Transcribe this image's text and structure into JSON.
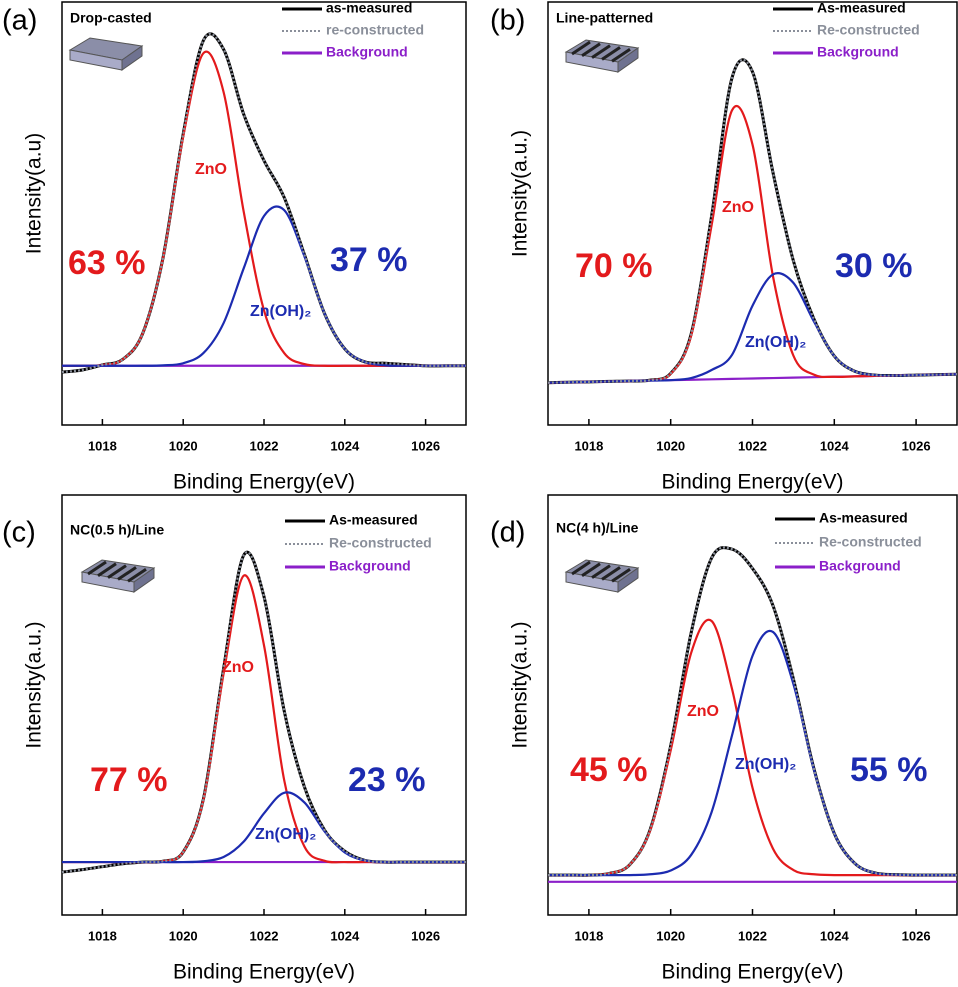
{
  "chart_data": [
    {
      "type": "line",
      "panel_label": "(a)",
      "title": "Drop-casted",
      "x_label": "Binding Energy(eV)",
      "y_label": "Intensity(a.u)",
      "xlim": [
        1017,
        1027
      ],
      "xticks": [
        1018,
        1020,
        1022,
        1024,
        1026
      ],
      "ylim": [
        0,
        100
      ],
      "x": [
        1017,
        1017.5,
        1018,
        1018.5,
        1019,
        1019.5,
        1020,
        1020.5,
        1021,
        1021.5,
        1022,
        1022.5,
        1023,
        1023.5,
        1024,
        1024.5,
        1025,
        1025.5,
        1026,
        1026.5,
        1027
      ],
      "series": [
        {
          "name": "as-measured",
          "color": "#000000",
          "dash": false,
          "in_legend": true,
          "values": [
            12.5,
            13,
            14.2,
            15.5,
            21.7,
            39.5,
            68.8,
            90.9,
            88.8,
            73.4,
            62.5,
            53.8,
            40.3,
            26.3,
            18.0,
            14.9,
            14.6,
            14.3,
            14,
            14,
            14
          ]
        },
        {
          "name": "re-constructed",
          "color": "#8a8f9a",
          "dash": true,
          "in_legend": true,
          "values": [
            12.5,
            13,
            14.2,
            15.5,
            21.7,
            39.5,
            68.8,
            90.9,
            88.8,
            73.4,
            62.5,
            53.8,
            40.3,
            26.3,
            18.0,
            14.9,
            14.6,
            14.3,
            14,
            14,
            14
          ]
        },
        {
          "name": "Background",
          "color": "#8b1fc9",
          "dash": false,
          "in_legend": true,
          "values": [
            14,
            14,
            14,
            14,
            14,
            14,
            14,
            14,
            14,
            14,
            14,
            14,
            14,
            14,
            14,
            14,
            14,
            14,
            14,
            14,
            14
          ]
        },
        {
          "name": "ZnO",
          "color": "#e31a1c",
          "dash": false,
          "in_legend": false,
          "values": [
            14,
            14,
            14.2,
            15.5,
            21.7,
            39.4,
            68.2,
            87.9,
            78.7,
            50.3,
            27.1,
            17.0,
            14.4,
            14,
            14,
            14,
            14,
            14,
            14,
            14,
            14
          ]
        },
        {
          "name": "Zn(OH)₂",
          "color": "#1c2bb0",
          "dash": false,
          "in_legend": false,
          "values": [
            14,
            14,
            14,
            14,
            14,
            14.1,
            14.6,
            17.0,
            24.1,
            37.1,
            49.4,
            50.8,
            39.9,
            26.3,
            18.0,
            14.9,
            14.1,
            14,
            14,
            14,
            14
          ]
        }
      ],
      "annotations": [
        {
          "text": "63 %",
          "color": "#e31a1c"
        },
        {
          "text": "37 %",
          "color": "#1c2bb0"
        }
      ]
    },
    {
      "type": "line",
      "panel_label": "(b)",
      "title": "Line-patterned",
      "x_label": "Binding Energy(eV)",
      "y_label": "Intensity(a.u.)",
      "xlim": [
        1017,
        1027
      ],
      "xticks": [
        1018,
        1020,
        1022,
        1024,
        1026
      ],
      "ylim": [
        0,
        100
      ],
      "x": [
        1017,
        1017.5,
        1018,
        1018.5,
        1019,
        1019.5,
        1020,
        1020.5,
        1021,
        1021.5,
        1022,
        1022.5,
        1023,
        1023.5,
        1024,
        1024.5,
        1025,
        1025.5,
        1026,
        1026.5,
        1027
      ],
      "series": [
        {
          "name": "As-measured",
          "color": "#000000",
          "dash": false,
          "in_legend": true,
          "values": [
            10,
            10.1,
            10.2,
            10.3,
            10.4,
            10.6,
            12.2,
            21.5,
            49.4,
            82.1,
            83.5,
            59.7,
            38.8,
            25.1,
            16.3,
            12.7,
            11.8,
            11.7,
            11.8,
            11.9,
            12
          ]
        },
        {
          "name": "Re-constructed",
          "color": "#8a8f9a",
          "dash": true,
          "in_legend": true,
          "values": [
            10,
            10.1,
            10.2,
            10.3,
            10.4,
            10.6,
            12.2,
            21.5,
            49.4,
            82.1,
            83.5,
            59.7,
            38.8,
            25.1,
            16.3,
            12.7,
            11.8,
            11.7,
            11.8,
            11.9,
            12
          ]
        },
        {
          "name": "Background",
          "color": "#8b1fc9",
          "dash": false,
          "in_legend": true,
          "values": [
            10,
            10.1,
            10.2,
            10.3,
            10.4,
            10.5,
            10.6,
            10.7,
            10.8,
            10.9,
            11,
            11.1,
            11.2,
            11.3,
            11.4,
            11.5,
            11.6,
            11.7,
            11.8,
            11.9,
            12
          ]
        },
        {
          "name": "ZnO",
          "color": "#e31a1c",
          "dash": false,
          "in_legend": false,
          "values": [
            10,
            10.1,
            10.2,
            10.3,
            10.4,
            10.6,
            12.1,
            21.1,
            47.2,
            74.4,
            66.3,
            35.2,
            16.4,
            11.9,
            11.4,
            11.5,
            11.6,
            11.7,
            11.8,
            11.9,
            12
          ]
        },
        {
          "name": "Zn(OH)₂",
          "color": "#1c2bb0",
          "dash": false,
          "in_legend": false,
          "values": [
            10,
            10.1,
            10.2,
            10.3,
            10.4,
            10.5,
            10.6,
            11.1,
            13.0,
            16.6,
            28.2,
            35.6,
            33.6,
            24.5,
            16.3,
            12.7,
            11.8,
            11.7,
            11.8,
            11.9,
            12
          ]
        }
      ],
      "annotations": [
        {
          "text": "70 %",
          "color": "#e31a1c"
        },
        {
          "text": "30 %",
          "color": "#1c2bb0"
        }
      ]
    },
    {
      "type": "line",
      "panel_label": "(c)",
      "title": "NC(0.5 h)/Line",
      "x_label": "Binding Energy(eV)",
      "y_label": "Intensity(a.u.)",
      "xlim": [
        1017,
        1027
      ],
      "xticks": [
        1018,
        1020,
        1022,
        1024,
        1026
      ],
      "ylim": [
        0,
        100
      ],
      "x": [
        1017,
        1017.5,
        1018,
        1018.5,
        1019,
        1019.5,
        1020,
        1020.5,
        1021,
        1021.5,
        1022,
        1022.5,
        1023,
        1023.5,
        1024,
        1024.5,
        1025,
        1025.5,
        1026,
        1026.5,
        1027
      ],
      "series": [
        {
          "name": "As-measured",
          "color": "#000000",
          "dash": false,
          "in_legend": true,
          "values": [
            10.2,
            10.8,
            11.5,
            12.2,
            12.6,
            12.8,
            15.0,
            27.6,
            58.7,
            85.7,
            75.8,
            48.6,
            30.5,
            20.2,
            15.2,
            13.0,
            12.6,
            12.6,
            12.6,
            12.6,
            12.6
          ]
        },
        {
          "name": "Re-constructed",
          "color": "#8a8f9a",
          "dash": true,
          "in_legend": true,
          "values": [
            10.2,
            10.8,
            11.5,
            12.2,
            12.6,
            12.8,
            15.0,
            27.6,
            58.7,
            85.7,
            75.8,
            48.6,
            30.5,
            20.2,
            15.2,
            13.0,
            12.6,
            12.6,
            12.6,
            12.6,
            12.6
          ]
        },
        {
          "name": "Background",
          "color": "#8b1fc9",
          "dash": false,
          "in_legend": true,
          "values": [
            12.6,
            12.6,
            12.6,
            12.6,
            12.6,
            12.6,
            12.6,
            12.6,
            12.6,
            12.6,
            12.6,
            12.6,
            12.6,
            12.6,
            12.6,
            12.6,
            12.6,
            12.6,
            12.6,
            12.6,
            12.6
          ]
        },
        {
          "name": "ZnO",
          "color": "#e31a1c",
          "dash": false,
          "in_legend": false,
          "values": [
            12.6,
            12.6,
            12.6,
            12.6,
            12.6,
            12.8,
            15.0,
            27.4,
            57.5,
            80.8,
            64.2,
            32.1,
            16.3,
            12.9,
            12.6,
            12.6,
            12.6,
            12.6,
            12.6,
            12.6,
            12.6
          ]
        },
        {
          "name": "Zn(OH)₂",
          "color": "#1c2bb0",
          "dash": false,
          "in_legend": false,
          "values": [
            12.6,
            12.6,
            12.6,
            12.6,
            12.6,
            12.6,
            12.6,
            12.8,
            13.8,
            17.5,
            24.2,
            29.1,
            26.8,
            19.9,
            14.9,
            13.0,
            12.6,
            12.6,
            12.6,
            12.6,
            12.6
          ]
        }
      ],
      "annotations": [
        {
          "text": "77 %",
          "color": "#e31a1c"
        },
        {
          "text": "23 %",
          "color": "#1c2bb0"
        }
      ]
    },
    {
      "type": "line",
      "panel_label": "(d)",
      "title": "NC(4 h)/Line",
      "x_label": "Binding Energy(eV)",
      "y_label": "Intensity(a.u.)",
      "xlim": [
        1017,
        1027
      ],
      "xticks": [
        1018,
        1020,
        1022,
        1024,
        1026
      ],
      "ylim": [
        0,
        100
      ],
      "x": [
        1017,
        1017.5,
        1018,
        1018.5,
        1019,
        1019.5,
        1020,
        1020.5,
        1021,
        1021.5,
        1022,
        1022.5,
        1023,
        1023.5,
        1024,
        1024.5,
        1025,
        1025.5,
        1026,
        1026.5,
        1027
      ],
      "series": [
        {
          "name": "As-measured",
          "color": "#000000",
          "dash": false,
          "in_legend": true,
          "values": [
            9.5,
            9.5,
            9.5,
            9.9,
            12.0,
            20.4,
            40.3,
            67.2,
            85.0,
            87.1,
            82.5,
            73.7,
            56.2,
            34.9,
            19.4,
            12.3,
            10.0,
            9.6,
            9.5,
            9.5,
            9.5
          ]
        },
        {
          "name": "Re-constructed",
          "color": "#8a8f9a",
          "dash": true,
          "in_legend": true,
          "values": [
            9.5,
            9.5,
            9.5,
            9.9,
            12.0,
            20.4,
            40.3,
            67.2,
            85.0,
            87.1,
            82.5,
            73.7,
            56.2,
            34.9,
            19.4,
            12.3,
            10.0,
            9.6,
            9.5,
            9.5,
            9.5
          ]
        },
        {
          "name": "Background",
          "color": "#8b1fc9",
          "dash": false,
          "in_legend": true,
          "values": [
            7.9,
            7.9,
            7.9,
            7.9,
            7.9,
            7.9,
            7.9,
            7.9,
            7.9,
            7.9,
            7.9,
            7.9,
            7.9,
            7.9,
            7.9,
            7.9,
            7.9,
            7.9,
            7.9,
            7.9,
            7.9
          ]
        },
        {
          "name": "ZnO",
          "color": "#e31a1c",
          "dash": false,
          "in_legend": false,
          "values": [
            9.5,
            9.5,
            9.5,
            9.9,
            12.0,
            20.2,
            39.2,
            62.4,
            70.0,
            53.8,
            30.3,
            15.8,
            10.7,
            9.7,
            9.5,
            9.5,
            9.5,
            9.5,
            9.5,
            9.5,
            9.5
          ]
        },
        {
          "name": "Zn(OH)₂",
          "color": "#1c2bb0",
          "dash": false,
          "in_legend": false,
          "values": [
            9.5,
            9.5,
            9.5,
            9.5,
            9.5,
            9.7,
            10.6,
            14.3,
            24.5,
            42.8,
            61.7,
            67.4,
            55.0,
            34.7,
            19.4,
            12.3,
            10.0,
            9.6,
            9.5,
            9.5,
            9.5
          ]
        }
      ],
      "annotations": [
        {
          "text": "45 %",
          "color": "#e31a1c"
        },
        {
          "text": "55 %",
          "color": "#1c2bb0"
        }
      ]
    }
  ]
}
